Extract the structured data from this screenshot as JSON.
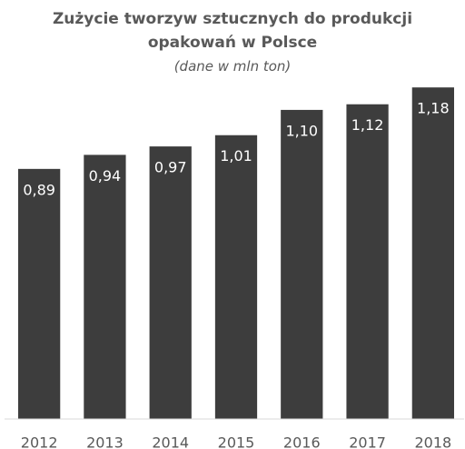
{
  "chart_data": {
    "type": "bar",
    "title": "Zużycie tworzyw sztucznych do produkcji opakowań w Polsce",
    "subtitle": "(dane w mln ton)",
    "categories": [
      "2012",
      "2013",
      "2014",
      "2015",
      "2016",
      "2017",
      "2018"
    ],
    "values": [
      0.89,
      0.94,
      0.97,
      1.01,
      1.1,
      1.12,
      1.18
    ],
    "value_labels": [
      "0,89",
      "0,94",
      "0,97",
      "1,01",
      "1,10",
      "1,12",
      "1,18"
    ],
    "color": "#3d3d3d",
    "ylim": [
      0,
      1.2
    ]
  }
}
